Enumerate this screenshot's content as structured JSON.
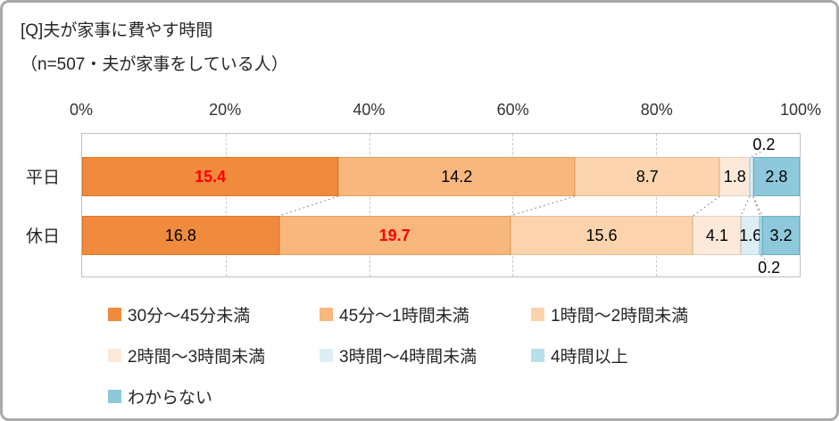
{
  "title": "[Q]夫が家事に費やす時間",
  "subtitle": "（n=507・夫が家事をしている人）",
  "chart_data": {
    "type": "stacked-bar-horizontal",
    "title": "[Q]夫が家事に費やす時間",
    "subtitle": "（n=507・夫が家事をしている人）",
    "x_axis": {
      "ticks": [
        "0%",
        "20%",
        "40%",
        "60%",
        "80%",
        "100%"
      ],
      "min": 0,
      "max": 100,
      "gridlines": "dotted-vertical"
    },
    "categories": [
      "平日",
      "休日"
    ],
    "series": [
      {
        "name": "30分～45分未満",
        "color": "#F08B3E",
        "border": "#DD7726",
        "values": [
          15.4,
          16.8
        ]
      },
      {
        "name": "45分～1時間未満",
        "color": "#F8B77C",
        "border": "#E5A05F",
        "values": [
          14.2,
          19.7
        ]
      },
      {
        "name": "1時間～2時間未満",
        "color": "#FBD4AE",
        "border": "#E9BC90",
        "values": [
          8.7,
          15.6
        ]
      },
      {
        "name": "2時間～3時間未満",
        "color": "#FDE9D9",
        "border": "#E9CEB9",
        "values": [
          1.8,
          4.1
        ]
      },
      {
        "name": "3時間～4時間未満",
        "color": "#DCEEF4",
        "border": "#BCD8E2",
        "values": [
          0.2,
          1.6
        ]
      },
      {
        "name": "4時間以上",
        "color": "#B8DFE9",
        "border": "#95C5D4",
        "values": [
          0.0,
          0.2
        ]
      },
      {
        "name": "わからない",
        "color": "#8DC8DB",
        "border": "#6EAFC5",
        "values": [
          2.8,
          3.2
        ]
      }
    ],
    "highlighted": [
      {
        "row": 0,
        "series": 0
      },
      {
        "row": 1,
        "series": 1
      }
    ],
    "highlight_color": "#FF0000",
    "callouts": [
      {
        "row": 0,
        "series": 4,
        "position": "above",
        "value": 0.2
      },
      {
        "row": 1,
        "series": 5,
        "position": "below",
        "value": 0.2
      }
    ],
    "note": "segment widths drawn normalized to each row's total"
  }
}
